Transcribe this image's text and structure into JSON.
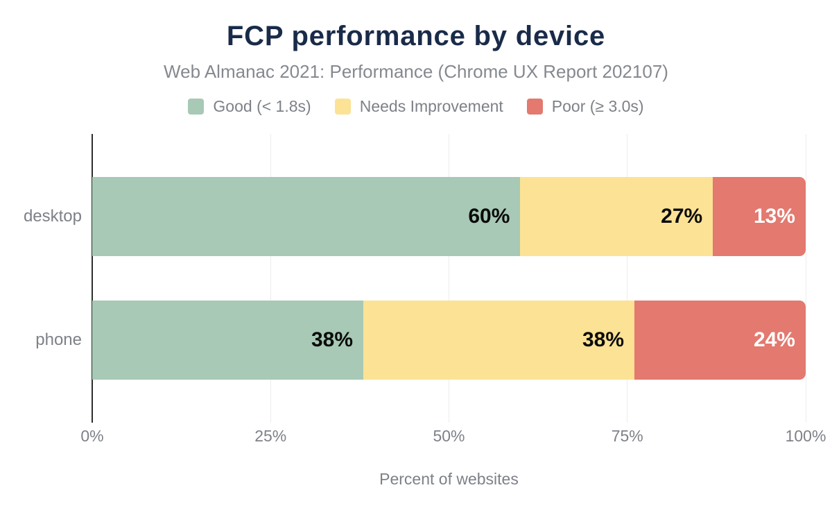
{
  "header": {
    "title": "FCP performance by device",
    "subtitle": "Web Almanac 2021: Performance (Chrome UX Report 202107)"
  },
  "colors": {
    "title_navy": "#1a2b49",
    "muted_text_gray": "#7d8187",
    "good_green": "#a7c9b5",
    "needs_improvement_yellow": "#fce294",
    "poor_red": "#e3796f",
    "axis_line": "#2b2d2b",
    "gridline": "#ededed",
    "value_label_dark": "#0b0b0b",
    "value_label_light": "#ffffff"
  },
  "chart_data": {
    "type": "bar",
    "orientation": "horizontal",
    "stacked": true,
    "title": "FCP performance by device",
    "subtitle": "Web Almanac 2021: Performance (Chrome UX Report 202107)",
    "categories": [
      "desktop",
      "phone"
    ],
    "series": [
      {
        "name": "Good (< 1.8s)",
        "color": "#a7c9b5",
        "label_color": "#0b0b0b",
        "values": [
          60,
          38
        ]
      },
      {
        "name": "Needs Improvement",
        "color": "#fce294",
        "label_color": "#0b0b0b",
        "values": [
          27,
          38
        ]
      },
      {
        "name": "Poor (≥ 3.0s)",
        "color": "#e3796f",
        "label_color": "#ffffff",
        "values": [
          13,
          24
        ]
      }
    ],
    "value_suffix": "%",
    "xlabel": "Percent of websites",
    "x_ticks": [
      "0%",
      "25%",
      "50%",
      "75%",
      "100%"
    ],
    "x_tick_values": [
      0,
      25,
      50,
      75,
      100
    ],
    "xlim": [
      0,
      100
    ],
    "legend_position": "top",
    "grid": "vertical-only",
    "data_labels": "inside-end"
  }
}
